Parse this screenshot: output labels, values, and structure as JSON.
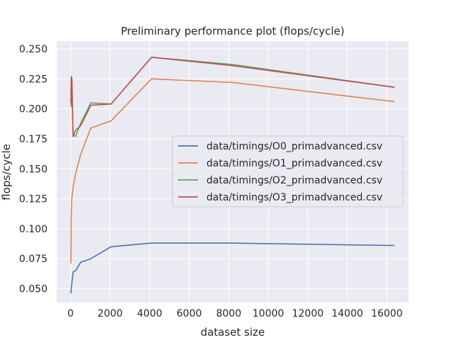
{
  "chart_data": {
    "type": "line",
    "title": "Preliminary performance plot (flops/cycle)",
    "xlabel": "dataset size",
    "ylabel": "flops/cycle",
    "xlim": [
      -700,
      17100
    ],
    "ylim": [
      0.0385,
      0.2565
    ],
    "xticks": [
      0,
      2000,
      4000,
      6000,
      8000,
      10000,
      12000,
      14000,
      16000
    ],
    "yticks": [
      0.05,
      0.075,
      0.1,
      0.125,
      0.15,
      0.175,
      0.2,
      0.225,
      0.25
    ],
    "ytick_labels": [
      "0.050",
      "0.075",
      "0.100",
      "0.125",
      "0.150",
      "0.175",
      "0.200",
      "0.225",
      "0.250"
    ],
    "grid": true,
    "legend_position": "center-right",
    "colors": {
      "background": "#eaeaf2",
      "grid": "#ffffff"
    },
    "series": [
      {
        "name": "data/timings/O0_primadvanced.csv",
        "color": "#4c72b0",
        "x": [
          16,
          32,
          64,
          128,
          256,
          512,
          1024,
          2048,
          4096,
          8192,
          16384
        ],
        "y": [
          0.046,
          0.05,
          0.055,
          0.064,
          0.065,
          0.072,
          0.075,
          0.085,
          0.088,
          0.088,
          0.086
        ]
      },
      {
        "name": "data/timings/O1_primadvanced.csv",
        "color": "#dd8452",
        "x": [
          16,
          32,
          64,
          128,
          256,
          512,
          1024,
          2048,
          4096,
          8192,
          16384
        ],
        "y": [
          0.071,
          0.11,
          0.125,
          0.135,
          0.146,
          0.162,
          0.184,
          0.19,
          0.225,
          0.222,
          0.206
        ]
      },
      {
        "name": "data/timings/O2_primadvanced.csv",
        "color": "#55a868",
        "x": [
          16,
          32,
          64,
          128,
          256,
          512,
          1024,
          2048,
          4096,
          8192,
          16384
        ],
        "y": [
          0.207,
          0.202,
          0.226,
          0.178,
          0.177,
          0.188,
          0.205,
          0.204,
          0.243,
          0.237,
          0.218
        ]
      },
      {
        "name": "data/timings/O3_primadvanced.csv",
        "color": "#c44e52",
        "x": [
          16,
          32,
          64,
          128,
          256,
          512,
          1024,
          2048,
          4096,
          8192,
          16384
        ],
        "y": [
          0.205,
          0.227,
          0.224,
          0.177,
          0.182,
          0.186,
          0.203,
          0.204,
          0.243,
          0.236,
          0.218
        ]
      }
    ]
  }
}
